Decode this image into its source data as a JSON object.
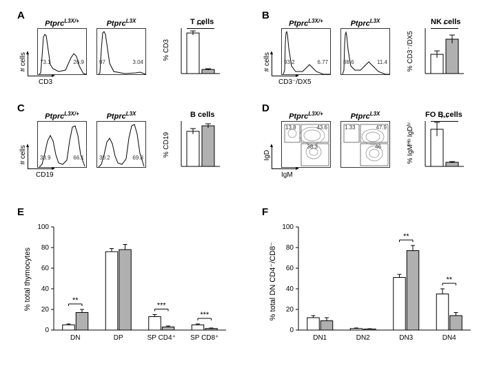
{
  "genotypes": {
    "het": "Ptprc",
    "het_sup": "L3X/+",
    "hom": "Ptprc",
    "hom_sup": "L3X"
  },
  "colors": {
    "het_bar": "#ffffff",
    "hom_bar": "#b0b0b0",
    "bar_stroke": "#000000",
    "bg": "#ffffff"
  },
  "panelA": {
    "label": "A",
    "marker": "CD3",
    "yaxis": "# cells",
    "het_gates": [
      "73.1",
      "26.9"
    ],
    "hom_gates": [
      "97",
      "3.04"
    ],
    "chart": {
      "title": "T cells",
      "ylabel": "% CD3",
      "ylim": [
        0,
        30
      ],
      "het_val": 27,
      "het_err": 1.5,
      "hom_val": 3,
      "hom_err": 0.5,
      "sig": "***"
    }
  },
  "panelB": {
    "label": "B",
    "marker": "CD3⁻/DX5",
    "yaxis": "# cells",
    "het_gates": [
      "93.2",
      "6.77"
    ],
    "hom_gates": [
      "88.6",
      "11.4"
    ],
    "chart": {
      "title": "NK cells",
      "ylabel": "% CD3⁻/DX5",
      "ylim": [
        0,
        13
      ],
      "het_val": 5.5,
      "het_err": 1,
      "hom_val": 9.8,
      "hom_err": 1.2,
      "sig": "*"
    }
  },
  "panelC": {
    "label": "C",
    "marker": "CD19",
    "yaxis": "# cells",
    "het_gates": [
      "33.9",
      "66.1"
    ],
    "hom_gates": [
      "30.2",
      "69.8"
    ],
    "chart": {
      "title": "B cells",
      "ylabel": "% CD19",
      "ylim": [
        0,
        80
      ],
      "het_val": 62,
      "het_err": 5,
      "hom_val": 72,
      "hom_err": 4,
      "sig": ""
    }
  },
  "panelD": {
    "label": "D",
    "marker_x": "IgM",
    "marker_y": "IgD",
    "het_gates": [
      "13.8",
      "43.6",
      "38.3"
    ],
    "hom_gates": [
      "1.33",
      "47.9",
      "46"
    ],
    "chart": {
      "title": "FO B cells",
      "ylabel": "% IgMᴴᵒ IgDʰⁱ",
      "ylim": [
        0,
        16
      ],
      "het_val": 13,
      "het_err": 2.5,
      "hom_val": 1.5,
      "hom_err": 0.3,
      "sig": "***"
    }
  },
  "panelE": {
    "label": "E",
    "ylabel": "% total thymocytes",
    "ylim": [
      0,
      100
    ],
    "ytick_step": 20,
    "groups": [
      "DN",
      "DP",
      "SP CD4⁺",
      "SP CD8⁺"
    ],
    "het_vals": [
      5,
      76,
      13,
      5
    ],
    "het_errs": [
      1,
      3,
      2,
      1
    ],
    "hom_vals": [
      17,
      78,
      3,
      1.5
    ],
    "hom_errs": [
      3,
      5,
      1,
      0.5
    ],
    "sigs": [
      "**",
      "",
      "***",
      "***"
    ]
  },
  "panelF": {
    "label": "F",
    "ylabel": "% total DN CD4⁻/CD8⁻",
    "ylim": [
      0,
      100
    ],
    "ytick_step": 20,
    "groups": [
      "DN1",
      "DN2",
      "DN3",
      "DN4"
    ],
    "het_vals": [
      12,
      1.5,
      51,
      35
    ],
    "het_errs": [
      2,
      0.5,
      3,
      5
    ],
    "hom_vals": [
      9,
      1,
      77,
      14
    ],
    "hom_errs": [
      3,
      0.3,
      5,
      3
    ],
    "sigs": [
      "",
      "",
      "**",
      "**"
    ]
  }
}
